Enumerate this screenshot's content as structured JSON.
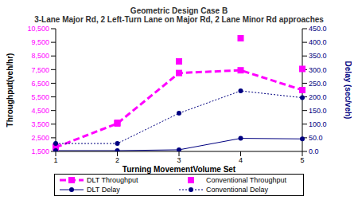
{
  "chart_data": {
    "type": "line",
    "title": "Geometric Design Case B",
    "subtitle": "3-Lane Major Rd, 2 Left-Turn Lane on Major Rd, 2 Lane Minor Rd approaches",
    "x_label": "Turning MovementVolume Set",
    "y_label": "Throughput(veh/hr)",
    "y2_label": "Delay (sec/veh)",
    "categories": [
      "1",
      "2",
      "3",
      "4",
      "5"
    ],
    "ylim": [
      1500,
      10500
    ],
    "yticks": [
      {
        "value": 1500,
        "label": "1,500"
      },
      {
        "value": 2500,
        "label": "2,500"
      },
      {
        "value": 3500,
        "label": "3,500"
      },
      {
        "value": 4500,
        "label": "4,500"
      },
      {
        "value": 5500,
        "label": "5,500"
      },
      {
        "value": 6500,
        "label": "6,500"
      },
      {
        "value": 7500,
        "label": "7,500"
      },
      {
        "value": 8500,
        "label": "8,500"
      },
      {
        "value": 9500,
        "label": "9,500"
      },
      {
        "value": 10500,
        "label": "10,500"
      }
    ],
    "y2lim": [
      0,
      450
    ],
    "y2ticks": [
      {
        "value": 0,
        "label": "0.0"
      },
      {
        "value": 50,
        "label": "50.0"
      },
      {
        "value": 100,
        "label": "100.0"
      },
      {
        "value": 150,
        "label": "150.0"
      },
      {
        "value": 200,
        "label": "200.0"
      },
      {
        "value": 250,
        "label": "250.0"
      },
      {
        "value": 300,
        "label": "300.0"
      },
      {
        "value": 350,
        "label": "350.0"
      },
      {
        "value": 400,
        "label": "400.0"
      },
      {
        "value": 450,
        "label": "450.0"
      }
    ],
    "grid": false,
    "legend": "bottom",
    "series": [
      {
        "name": "DLT Throughput",
        "color": "#ff00ff",
        "marker": "square",
        "line_style": "dashed",
        "values": [
          1800,
          3550,
          7250,
          7450,
          6000
        ]
      },
      {
        "name": "Conventional Throughput",
        "color": "#ff00ff",
        "marker": "square",
        "line_style": "none",
        "values": [
          1850,
          3600,
          8100,
          9800,
          7550
        ]
      },
      {
        "name": "DLT Delay",
        "color": "#000080",
        "marker": "circle",
        "line_style": "solid",
        "axis": "y2",
        "values": [
          3,
          3,
          6,
          48,
          46
        ]
      },
      {
        "name": "Conventional Delay",
        "color": "#000080",
        "marker": "circle",
        "line_style": "dotted",
        "axis": "y2",
        "values": [
          29,
          29,
          140,
          222,
          197
        ]
      }
    ]
  }
}
